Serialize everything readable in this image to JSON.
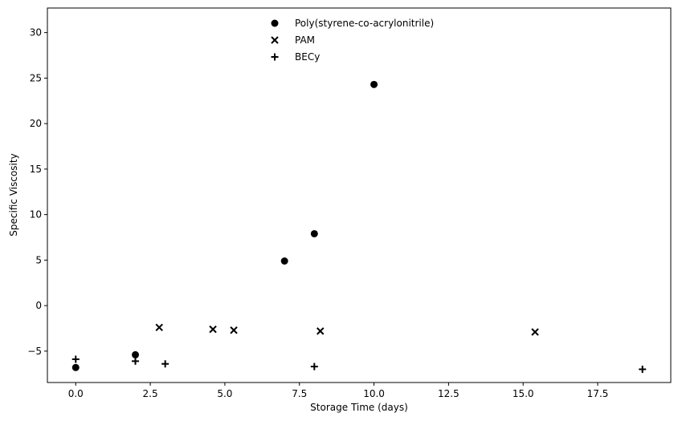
{
  "chart_data": {
    "type": "scatter",
    "title": "",
    "xlabel": "Storage Time (days)",
    "ylabel": "Specific Viscosity",
    "xlim": [
      -0.95,
      19.95
    ],
    "ylim": [
      -8.45,
      32.7
    ],
    "xticks": [
      0.0,
      2.5,
      5.0,
      7.5,
      10.0,
      12.5,
      15.0,
      17.5
    ],
    "xtick_labels": [
      "0.0",
      "2.5",
      "5.0",
      "7.5",
      "10.0",
      "12.5",
      "15.0",
      "17.5"
    ],
    "yticks": [
      -5,
      0,
      5,
      10,
      15,
      20,
      25,
      30
    ],
    "ytick_labels": [
      "−5",
      "0",
      "5",
      "10",
      "15",
      "20",
      "25",
      "30"
    ],
    "grid": false,
    "legend_position": "top-center",
    "series": [
      {
        "name": "Poly(styrene-co-acrylonitrile)",
        "marker": "circle",
        "color": "#000000",
        "points": [
          [
            0,
            -6.8
          ],
          [
            2,
            -5.4
          ],
          [
            7,
            4.9
          ],
          [
            8,
            7.9
          ],
          [
            10,
            24.3
          ]
        ]
      },
      {
        "name": "PAM",
        "marker": "x",
        "color": "#000000",
        "points": [
          [
            2.8,
            -2.4
          ],
          [
            4.6,
            -2.6
          ],
          [
            5.3,
            -2.7
          ],
          [
            8.2,
            -2.8
          ],
          [
            15.4,
            -2.9
          ]
        ]
      },
      {
        "name": "BECy",
        "marker": "plus",
        "color": "#000000",
        "points": [
          [
            0,
            -5.9
          ],
          [
            2,
            -6.1
          ],
          [
            3,
            -6.4
          ],
          [
            8,
            -6.7
          ],
          [
            19,
            -7.0
          ]
        ]
      }
    ]
  }
}
